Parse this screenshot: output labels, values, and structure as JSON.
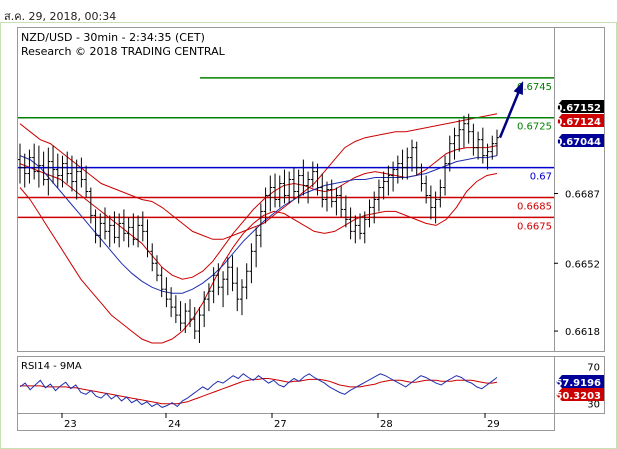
{
  "header": {
    "datetime": "ส.ค. 29, 2018, 00:34"
  },
  "chart_data": {
    "type": "line",
    "title": "NZD/USD - 30min - 2:34:35 (CET)",
    "subtitle": "Research © 2018 TRADING CENTRAL",
    "price_axis": {
      "range": [
        0.6608,
        0.677
      ],
      "ticks": [
        "0.6687",
        "0.6652",
        "0.6618"
      ]
    },
    "time_axis": {
      "labels": [
        "23",
        "24",
        "27",
        "28",
        "29"
      ]
    },
    "levels": [
      {
        "value": 0.6745,
        "label": "0.6745",
        "color": "#008000"
      },
      {
        "value": 0.6725,
        "label": "0.6725",
        "color": "#008000"
      },
      {
        "value": 0.67,
        "label": "0.67",
        "color": "#0000cc"
      },
      {
        "value": 0.6685,
        "label": "0.6685",
        "color": "#cc0000"
      },
      {
        "value": 0.6675,
        "label": "0.6675",
        "color": "#cc0000"
      }
    ],
    "price_tags": [
      {
        "label": "0.67152",
        "value": 0.67152,
        "bg": "#000000",
        "color": "#ffffff"
      },
      {
        "label": "0.67124",
        "value": 0.67124,
        "bg": "#cc0000",
        "color": "#ffffff"
      },
      {
        "label": "0.67044",
        "value": 0.67044,
        "bg": "#000099",
        "color": "#ffffff"
      }
    ],
    "forecast_arrow": {
      "from": 0.6715,
      "to": 0.6745
    },
    "bars": [
      [
        0.6704,
        0.6712,
        0.6692,
        0.67
      ],
      [
        0.67,
        0.6707,
        0.669,
        0.6697
      ],
      [
        0.6697,
        0.6709,
        0.6692,
        0.6705
      ],
      [
        0.6705,
        0.6712,
        0.6694,
        0.6698
      ],
      [
        0.6698,
        0.6711,
        0.669,
        0.6701
      ],
      [
        0.6701,
        0.6708,
        0.6691,
        0.6694
      ],
      [
        0.6694,
        0.671,
        0.6686,
        0.6703
      ],
      [
        0.6703,
        0.6711,
        0.6692,
        0.6699
      ],
      [
        0.6699,
        0.6707,
        0.669,
        0.6696
      ],
      [
        0.6696,
        0.6706,
        0.669,
        0.6702
      ],
      [
        0.6702,
        0.6708,
        0.6692,
        0.6697
      ],
      [
        0.6697,
        0.6706,
        0.6688,
        0.6693
      ],
      [
        0.6693,
        0.6704,
        0.6684,
        0.6698
      ],
      [
        0.6698,
        0.6705,
        0.669,
        0.6694
      ],
      [
        0.6694,
        0.6701,
        0.6685,
        0.6688
      ],
      [
        0.6688,
        0.669,
        0.6672,
        0.6676
      ],
      [
        0.6676,
        0.6679,
        0.6662,
        0.6666
      ],
      [
        0.6666,
        0.6677,
        0.666,
        0.6672
      ],
      [
        0.6672,
        0.668,
        0.6664,
        0.6668
      ],
      [
        0.6668,
        0.6676,
        0.666,
        0.6671
      ],
      [
        0.6671,
        0.6678,
        0.6662,
        0.6665
      ],
      [
        0.6665,
        0.6677,
        0.666,
        0.6672
      ],
      [
        0.6672,
        0.6679,
        0.6663,
        0.6667
      ],
      [
        0.6667,
        0.6675,
        0.666,
        0.667
      ],
      [
        0.667,
        0.6677,
        0.6661,
        0.6664
      ],
      [
        0.6664,
        0.6676,
        0.666,
        0.6671
      ],
      [
        0.6671,
        0.6678,
        0.6663,
        0.6668
      ],
      [
        0.6668,
        0.6674,
        0.6655,
        0.6658
      ],
      [
        0.6658,
        0.6662,
        0.6648,
        0.6652
      ],
      [
        0.6652,
        0.6656,
        0.6643,
        0.6646
      ],
      [
        0.6646,
        0.665,
        0.6635,
        0.6639
      ],
      [
        0.6639,
        0.6645,
        0.663,
        0.6634
      ],
      [
        0.6634,
        0.664,
        0.6625,
        0.663
      ],
      [
        0.663,
        0.6636,
        0.6622,
        0.6626
      ],
      [
        0.6626,
        0.6633,
        0.6618,
        0.6622
      ],
      [
        0.6622,
        0.6632,
        0.6617,
        0.6628
      ],
      [
        0.6628,
        0.6634,
        0.662,
        0.6624
      ],
      [
        0.6624,
        0.663,
        0.6614,
        0.6618
      ],
      [
        0.6618,
        0.663,
        0.6612,
        0.6626
      ],
      [
        0.6626,
        0.6638,
        0.662,
        0.6634
      ],
      [
        0.6634,
        0.6642,
        0.6628,
        0.6638
      ],
      [
        0.6638,
        0.665,
        0.6632,
        0.6646
      ],
      [
        0.6646,
        0.6652,
        0.6636,
        0.664
      ],
      [
        0.664,
        0.6648,
        0.663,
        0.6644
      ],
      [
        0.6644,
        0.6655,
        0.6636,
        0.665
      ],
      [
        0.665,
        0.6656,
        0.6638,
        0.6642
      ],
      [
        0.6642,
        0.665,
        0.6628,
        0.6634
      ],
      [
        0.6634,
        0.6644,
        0.6626,
        0.664
      ],
      [
        0.664,
        0.6652,
        0.6634,
        0.6648
      ],
      [
        0.6648,
        0.6662,
        0.6642,
        0.6658
      ],
      [
        0.6658,
        0.667,
        0.665,
        0.6666
      ],
      [
        0.6666,
        0.6682,
        0.666,
        0.6678
      ],
      [
        0.6678,
        0.669,
        0.6672,
        0.6686
      ],
      [
        0.6686,
        0.6696,
        0.6678,
        0.669
      ],
      [
        0.669,
        0.6697,
        0.668,
        0.6684
      ],
      [
        0.6684,
        0.6696,
        0.668,
        0.6692
      ],
      [
        0.6692,
        0.6699,
        0.6682,
        0.6686
      ],
      [
        0.6686,
        0.6698,
        0.6682,
        0.6694
      ],
      [
        0.6694,
        0.67,
        0.6684,
        0.6688
      ],
      [
        0.6688,
        0.6699,
        0.6682,
        0.6696
      ],
      [
        0.6696,
        0.6704,
        0.6686,
        0.6691
      ],
      [
        0.6691,
        0.6698,
        0.6682,
        0.6694
      ],
      [
        0.6694,
        0.6703,
        0.669,
        0.6698
      ],
      [
        0.6698,
        0.6702,
        0.6686,
        0.669
      ],
      [
        0.669,
        0.6697,
        0.668,
        0.6684
      ],
      [
        0.6684,
        0.6693,
        0.6678,
        0.6689
      ],
      [
        0.6689,
        0.6694,
        0.668,
        0.6683
      ],
      [
        0.6683,
        0.669,
        0.6676,
        0.6686
      ],
      [
        0.6686,
        0.6691,
        0.6675,
        0.6679
      ],
      [
        0.6679,
        0.6686,
        0.667,
        0.6674
      ],
      [
        0.6674,
        0.668,
        0.6664,
        0.6668
      ],
      [
        0.6668,
        0.6676,
        0.6662,
        0.6671
      ],
      [
        0.6671,
        0.6677,
        0.6664,
        0.6667
      ],
      [
        0.6667,
        0.6678,
        0.6662,
        0.6674
      ],
      [
        0.6674,
        0.6684,
        0.667,
        0.668
      ],
      [
        0.668,
        0.6688,
        0.6672,
        0.6684
      ],
      [
        0.6684,
        0.6694,
        0.6678,
        0.669
      ],
      [
        0.669,
        0.6698,
        0.6684,
        0.6693
      ],
      [
        0.6693,
        0.6701,
        0.6686,
        0.6696
      ],
      [
        0.6696,
        0.6703,
        0.6688,
        0.6699
      ],
      [
        0.6699,
        0.6706,
        0.6692,
        0.6702
      ],
      [
        0.6702,
        0.6709,
        0.6694,
        0.67
      ],
      [
        0.67,
        0.671,
        0.6694,
        0.6705
      ],
      [
        0.6705,
        0.6714,
        0.6698,
        0.671
      ],
      [
        0.671,
        0.6713,
        0.6696,
        0.67
      ],
      [
        0.67,
        0.6702,
        0.6688,
        0.6692
      ],
      [
        0.6692,
        0.6696,
        0.6682,
        0.6686
      ],
      [
        0.6686,
        0.6691,
        0.6674,
        0.668
      ],
      [
        0.668,
        0.6688,
        0.6672,
        0.6684
      ],
      [
        0.6684,
        0.6694,
        0.668,
        0.669
      ],
      [
        0.669,
        0.6706,
        0.6686,
        0.6702
      ],
      [
        0.6702,
        0.6716,
        0.6698,
        0.6712
      ],
      [
        0.6712,
        0.672,
        0.6704,
        0.6716
      ],
      [
        0.6716,
        0.6724,
        0.6708,
        0.6719
      ],
      [
        0.6719,
        0.6726,
        0.671,
        0.6722
      ],
      [
        0.6722,
        0.6727,
        0.6712,
        0.6718
      ],
      [
        0.6718,
        0.6722,
        0.6706,
        0.671
      ],
      [
        0.671,
        0.6718,
        0.6704,
        0.6714
      ],
      [
        0.6714,
        0.672,
        0.6702,
        0.6706
      ],
      [
        0.6706,
        0.6712,
        0.6699,
        0.6708
      ],
      [
        0.6708,
        0.6716,
        0.6704,
        0.6712
      ],
      [
        0.6712,
        0.6719,
        0.6706,
        0.6715
      ]
    ],
    "bb_upper": [
      0.6722,
      0.6718,
      0.6714,
      0.6712,
      0.6708,
      0.6704,
      0.67,
      0.6696,
      0.6692,
      0.669,
      0.6688,
      0.6686,
      0.6684,
      0.6683,
      0.668,
      0.6676,
      0.6672,
      0.6668,
      0.6666,
      0.6664,
      0.6664,
      0.6666,
      0.6668,
      0.667,
      0.6672,
      0.6676,
      0.668,
      0.6684,
      0.6688,
      0.6692,
      0.6698,
      0.6704,
      0.671,
      0.6713,
      0.6715,
      0.6716,
      0.6717,
      0.6718,
      0.6718,
      0.6719,
      0.672,
      0.6721,
      0.6722,
      0.6723,
      0.6724,
      0.6725,
      0.6726,
      0.6727
    ],
    "bb_mid": [
      0.6702,
      0.67,
      0.6698,
      0.6696,
      0.6694,
      0.669,
      0.6686,
      0.6682,
      0.6678,
      0.6674,
      0.667,
      0.6666,
      0.6662,
      0.6656,
      0.665,
      0.6646,
      0.6644,
      0.6645,
      0.6648,
      0.6653,
      0.666,
      0.6667,
      0.6673,
      0.6679,
      0.6684,
      0.6688,
      0.6691,
      0.6692,
      0.6691,
      0.6689,
      0.6688,
      0.6689,
      0.6692,
      0.6695,
      0.6697,
      0.6698,
      0.6697,
      0.6696,
      0.6695,
      0.6696,
      0.6699,
      0.6703,
      0.6707,
      0.6709,
      0.671,
      0.671,
      0.671,
      0.6711
    ],
    "bb_lower": [
      0.669,
      0.6684,
      0.6676,
      0.6668,
      0.666,
      0.6652,
      0.6644,
      0.6638,
      0.6632,
      0.6626,
      0.6622,
      0.6618,
      0.6614,
      0.6612,
      0.6612,
      0.6614,
      0.6618,
      0.6624,
      0.6632,
      0.6642,
      0.6652,
      0.666,
      0.6667,
      0.6672,
      0.6676,
      0.6678,
      0.6677,
      0.6674,
      0.6671,
      0.6668,
      0.6667,
      0.6668,
      0.6671,
      0.6674,
      0.6676,
      0.6677,
      0.6678,
      0.6678,
      0.6676,
      0.6674,
      0.6672,
      0.6671,
      0.6674,
      0.668,
      0.6688,
      0.6693,
      0.6696,
      0.6697
    ],
    "ma_blue": [
      0.6706,
      0.6704,
      0.67,
      0.6694,
      0.6688,
      0.6682,
      0.6676,
      0.667,
      0.6664,
      0.6658,
      0.6652,
      0.6647,
      0.6643,
      0.664,
      0.6638,
      0.6637,
      0.6637,
      0.6639,
      0.6642,
      0.6646,
      0.6651,
      0.6657,
      0.6663,
      0.6668,
      0.6673,
      0.6677,
      0.6681,
      0.6684,
      0.6687,
      0.6689,
      0.6691,
      0.6692,
      0.6693,
      0.6694,
      0.6694,
      0.6695,
      0.6695,
      0.6695,
      0.6695,
      0.6696,
      0.6697,
      0.6699,
      0.6701,
      0.6703,
      0.6704,
      0.6705,
      0.6705,
      0.6706
    ],
    "rsi": {
      "label": "RSI14 - 9MA",
      "range": [
        20,
        80
      ],
      "ticks": [
        "70",
        "30"
      ],
      "value_tags": [
        {
          "label": "57.9196",
          "value": 57.9196,
          "bg": "#000099",
          "color": "#ffffff"
        },
        {
          "label": "50.3203",
          "value": 50.3203,
          "bg": "#cc0000",
          "color": "#ffffff"
        }
      ],
      "rsi_line": [
        48,
        52,
        45,
        50,
        55,
        47,
        51,
        44,
        49,
        53,
        46,
        50,
        42,
        40,
        44,
        38,
        36,
        41,
        35,
        39,
        33,
        37,
        31,
        34,
        29,
        32,
        27,
        30,
        26,
        28,
        31,
        27,
        33,
        36,
        40,
        44,
        48,
        45,
        50,
        54,
        52,
        56,
        60,
        57,
        62,
        58,
        55,
        60,
        56,
        52,
        55,
        50,
        48,
        53,
        57,
        54,
        59,
        62,
        58,
        55,
        52,
        48,
        45,
        42,
        40,
        44,
        47,
        50,
        53,
        56,
        59,
        62,
        60,
        57,
        54,
        51,
        48,
        52,
        56,
        60,
        58,
        55,
        52,
        50,
        54,
        57,
        60,
        58,
        54,
        52,
        48,
        46,
        50,
        54,
        58
      ],
      "ma_line": [
        49,
        49,
        49,
        49,
        49,
        48,
        48,
        48,
        48,
        48,
        47,
        47,
        46,
        45,
        44,
        43,
        42,
        41,
        40,
        39,
        38,
        37,
        36,
        35,
        34,
        33,
        32,
        31,
        30,
        30,
        30,
        30,
        31,
        32,
        34,
        36,
        38,
        40,
        42,
        44,
        46,
        48,
        50,
        52,
        54,
        55,
        56,
        56,
        57,
        57,
        56,
        55,
        54,
        53,
        54,
        54,
        55,
        56,
        56,
        56,
        55,
        54,
        52,
        50,
        49,
        48,
        48,
        48,
        49,
        50,
        51,
        53,
        54,
        55,
        55,
        55,
        54,
        53,
        53,
        54,
        55,
        55,
        55,
        54,
        54,
        54,
        55,
        55,
        55,
        55,
        54,
        53,
        52,
        52,
        53
      ]
    }
  }
}
